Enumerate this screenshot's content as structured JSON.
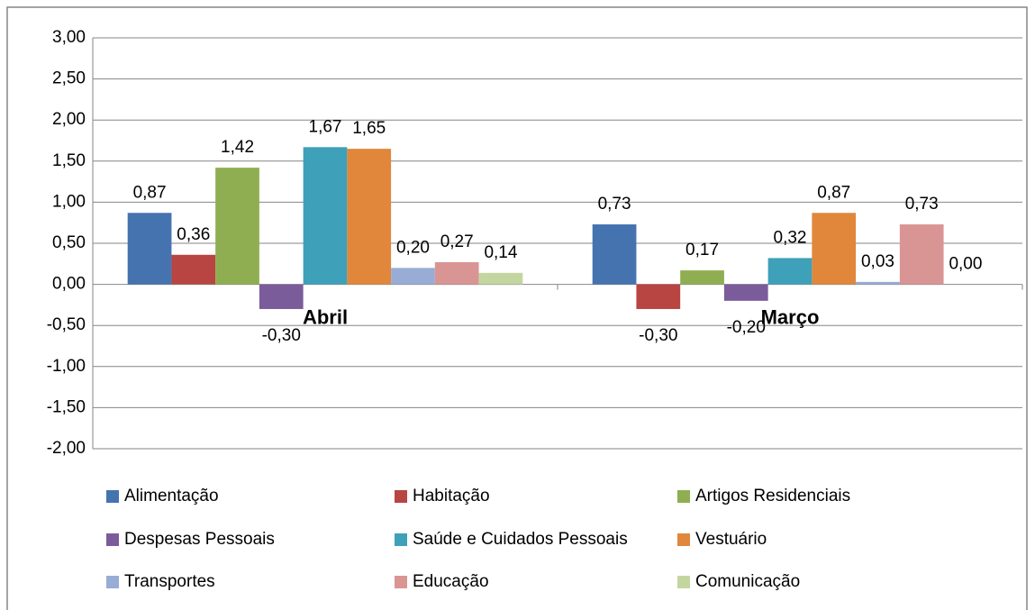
{
  "chart_data": {
    "type": "bar",
    "categories": [
      "Abril",
      "Março"
    ],
    "series": [
      {
        "name": "Alimentação",
        "color": "#4573b0",
        "values": [
          0.87,
          0.73
        ],
        "value_labels": [
          "0,87",
          "0,73"
        ]
      },
      {
        "name": "Habitação",
        "color": "#b84541",
        "values": [
          0.36,
          -0.3
        ],
        "value_labels": [
          "0,36",
          "-0,30"
        ]
      },
      {
        "name": "Artigos Residenciais",
        "color": "#8fae52",
        "values": [
          1.42,
          0.17
        ],
        "value_labels": [
          "1,42",
          "0,17"
        ]
      },
      {
        "name": "Despesas Pessoais",
        "color": "#7a5c9a",
        "values": [
          -0.3,
          -0.2
        ],
        "value_labels": [
          "-0,30",
          "-0,20"
        ]
      },
      {
        "name": "Saúde e Cuidados Pessoais",
        "color": "#3fa0b9",
        "values": [
          1.67,
          0.32
        ],
        "value_labels": [
          "1,67",
          "0,32"
        ]
      },
      {
        "name": "Vestuário",
        "color": "#e0873c",
        "values": [
          1.65,
          0.87
        ],
        "value_labels": [
          "1,65",
          "0,87"
        ]
      },
      {
        "name": "Transportes",
        "color": "#98acd6",
        "values": [
          0.2,
          0.03
        ],
        "value_labels": [
          "0,20",
          "0,03"
        ]
      },
      {
        "name": "Educação",
        "color": "#d99594",
        "values": [
          0.27,
          0.73
        ],
        "value_labels": [
          "0,27",
          "0,73"
        ]
      },
      {
        "name": "Comunicação",
        "color": "#c4d6a0",
        "values": [
          0.14,
          0.0
        ],
        "value_labels": [
          "0,14",
          "0,00"
        ]
      }
    ],
    "ylim": [
      -2,
      3
    ],
    "yticks": [
      {
        "value": -2,
        "label": "-2,00"
      },
      {
        "value": -1.5,
        "label": "-1,50"
      },
      {
        "value": -1,
        "label": "-1,00"
      },
      {
        "value": -0.5,
        "label": "-0,50"
      },
      {
        "value": 0,
        "label": "0,00"
      },
      {
        "value": 0.5,
        "label": "0,50"
      },
      {
        "value": 1,
        "label": "1,00"
      },
      {
        "value": 1.5,
        "label": "1,50"
      },
      {
        "value": 2,
        "label": "2,00"
      },
      {
        "value": 2.5,
        "label": "2,50"
      },
      {
        "value": 3,
        "label": "3,00"
      }
    ],
    "grid": true,
    "legend": "bottom"
  }
}
